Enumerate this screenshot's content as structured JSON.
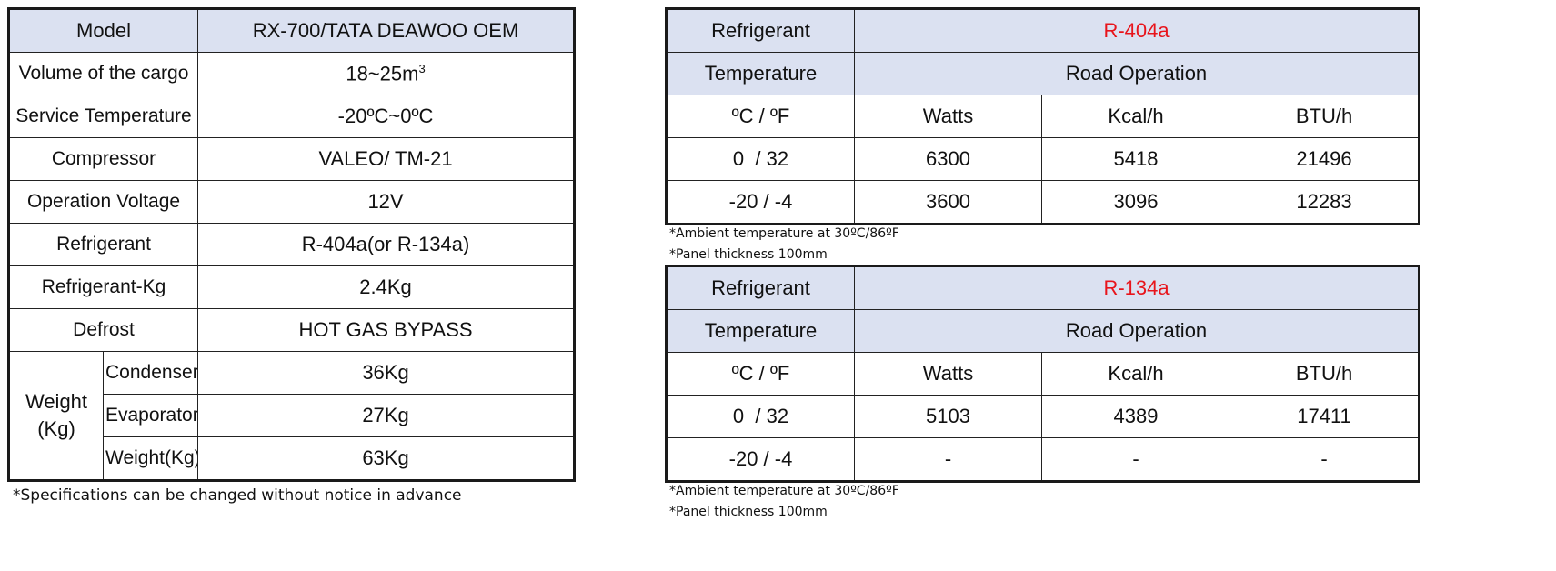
{
  "spec": {
    "model_label": "Model",
    "model_value": "RX-700/TATA DEAWOO OEM",
    "rows": [
      {
        "label": "Volume of the cargo",
        "value": "18~25m",
        "sup": "3"
      },
      {
        "label": "Service Temperature",
        "value": "-20ºC~0ºC"
      },
      {
        "label": "Compressor",
        "value": "VALEO/ TM-21"
      },
      {
        "label": "Operation Voltage",
        "value": "12V"
      },
      {
        "label": "Refrigerant",
        "value": "R-404a(or R-134a)"
      },
      {
        "label": "Refrigerant-Kg",
        "value": "2.4Kg"
      },
      {
        "label": "Defrost",
        "value": "HOT GAS BYPASS"
      }
    ],
    "weight_label_1": "Weight",
    "weight_label_2": "(Kg)",
    "weight_rows": [
      {
        "label": "Condenser",
        "value": "36Kg"
      },
      {
        "label": "Evaporator",
        "value": "27Kg"
      },
      {
        "label": "Weight(Kg)",
        "value": "63Kg"
      }
    ],
    "note": "*Specifications can be changed without notice in advance"
  },
  "perf": [
    {
      "refrigerant_label": "Refrigerant",
      "refrigerant_value": "R-404a",
      "temperature_label": "Temperature",
      "operation_label": "Road Operation",
      "columns": [
        "ºC / ºF",
        "Watts",
        "Kcal/h",
        "BTU/h"
      ],
      "rows": [
        [
          "0  / 32",
          "6300",
          "5418",
          "21496"
        ],
        [
          "-20 / -4",
          "3600",
          "3096",
          "12283"
        ]
      ],
      "note1": "*Ambient temperature at 30ºC/86ºF",
      "note2": "*Panel thickness 100mm"
    },
    {
      "refrigerant_label": "Refrigerant",
      "refrigerant_value": "R-134a",
      "temperature_label": "Temperature",
      "operation_label": "Road Operation",
      "columns": [
        "ºC / ºF",
        "Watts",
        "Kcal/h",
        "BTU/h"
      ],
      "rows": [
        [
          "0  / 32",
          "5103",
          "4389",
          "17411"
        ],
        [
          "-20 / -4",
          "-",
          "-",
          "-"
        ]
      ],
      "note1": "*Ambient temperature at 30ºC/86ºF",
      "note2": "*Panel thickness 100mm"
    }
  ],
  "colors": {
    "header_bg": "#dbe1f1",
    "accent_red": "#e8141b",
    "border": "#222222"
  }
}
